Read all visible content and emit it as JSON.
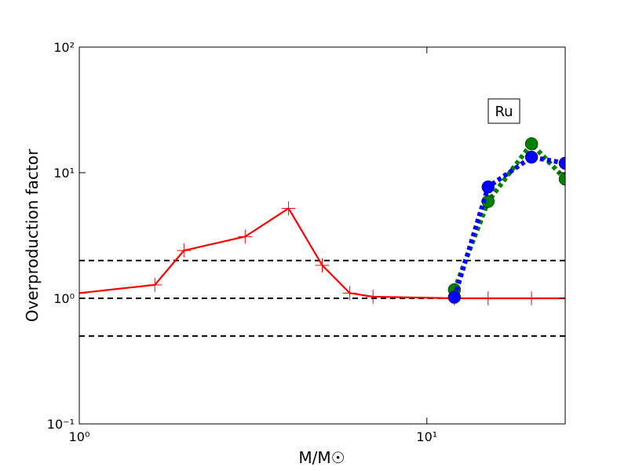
{
  "chart_data": {
    "type": "line",
    "xlabel": "M/M☉",
    "ylabel": "Overproduction factor",
    "annotation": "Ru",
    "xlog": true,
    "ylog": true,
    "xlim": [
      1,
      25
    ],
    "ylim": [
      0.1,
      100
    ],
    "xticks": [
      {
        "value": 1,
        "label": "10⁰"
      },
      {
        "value": 10,
        "label": "10¹"
      }
    ],
    "yticks": [
      {
        "value": 0.1,
        "label": "10⁻¹"
      },
      {
        "value": 1,
        "label": "10⁰"
      },
      {
        "value": 10,
        "label": "10¹"
      },
      {
        "value": 100,
        "label": "10²"
      }
    ],
    "hlines": [
      0.5,
      1,
      2
    ],
    "hline_color": "#000000",
    "series": [
      {
        "color": "#ff0000",
        "marker": "+",
        "linestyle": "solid",
        "x": [
          1,
          1.65,
          2,
          3,
          4,
          5,
          6,
          7,
          12,
          15,
          20,
          25
        ],
        "values": [
          1.1,
          1.28,
          2.4,
          3.1,
          5.2,
          1.83,
          1.1,
          1.03,
          1,
          1,
          1,
          1
        ]
      },
      {
        "color": "#007f00",
        "marker": "o",
        "linestyle": "dotted",
        "x": [
          12,
          15,
          20,
          25
        ],
        "values": [
          1.17,
          5.9,
          17,
          8.9
        ]
      },
      {
        "color": "#0000ff",
        "marker": "o",
        "linestyle": "dotted",
        "x": [
          12,
          15,
          20,
          25
        ],
        "values": [
          1.02,
          7.7,
          13.3,
          11.9
        ]
      }
    ]
  }
}
